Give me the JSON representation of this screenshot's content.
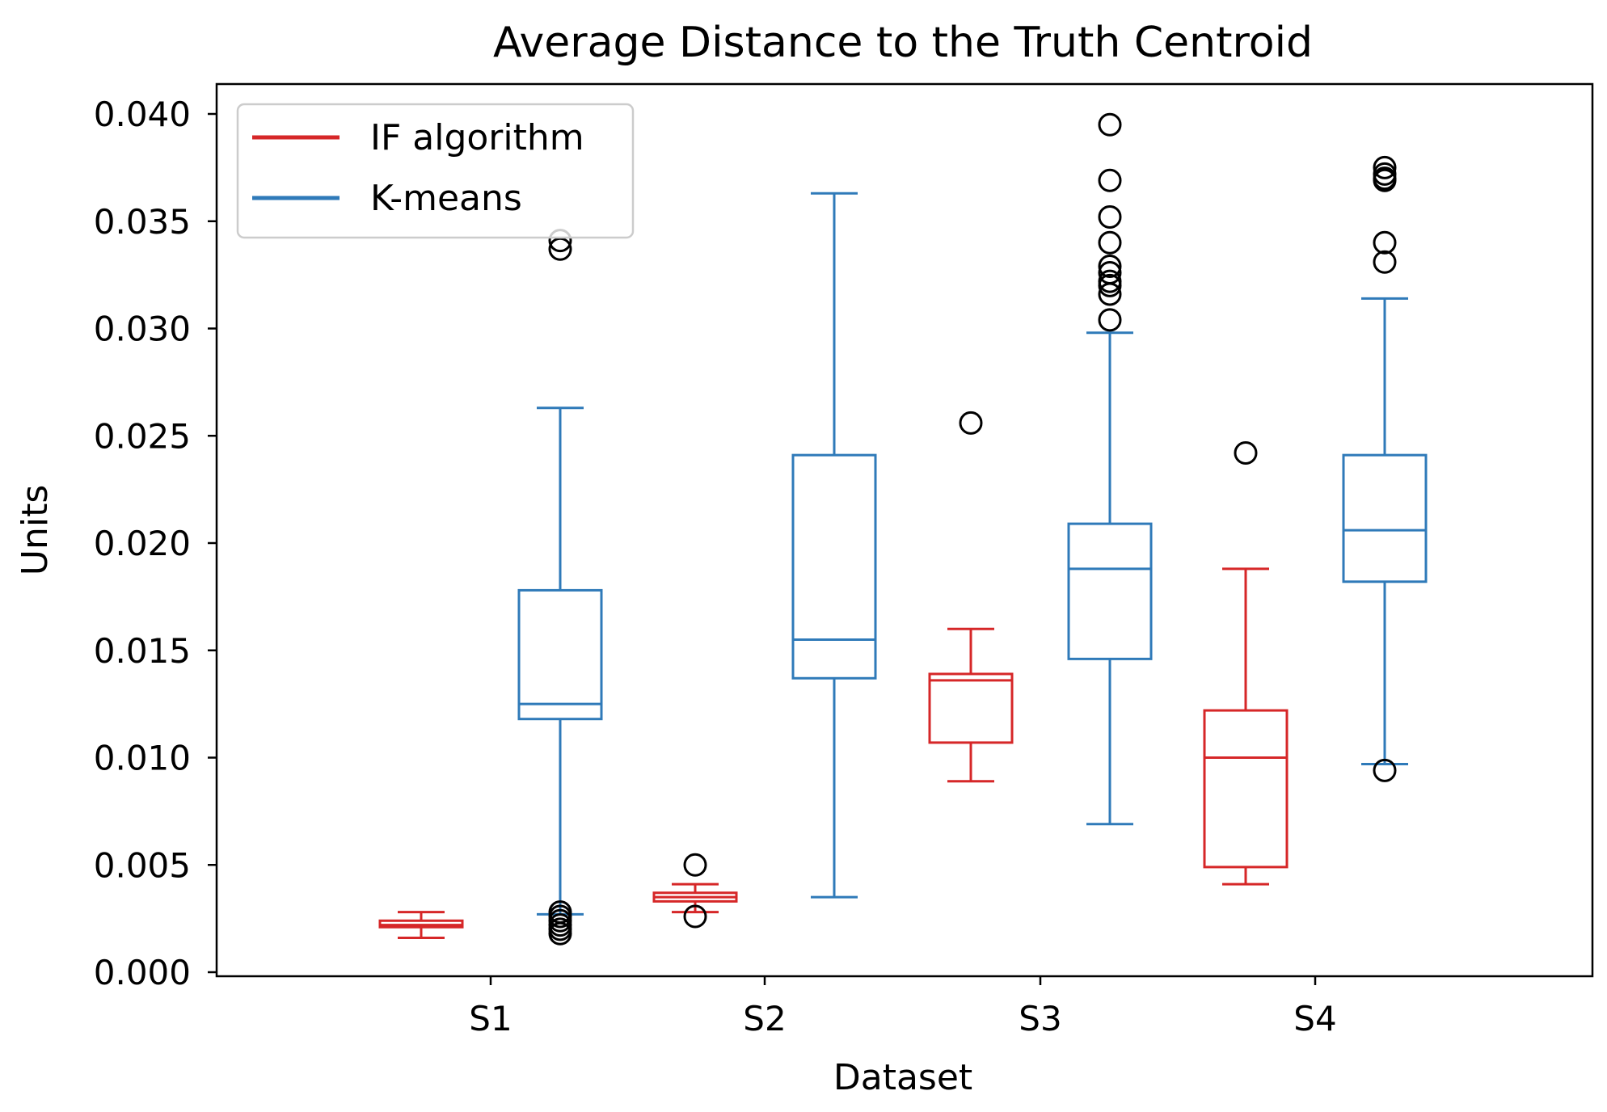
{
  "chart_data": {
    "type": "boxplot",
    "title": "Average Distance to the Truth Centroid",
    "xlabel": "Dataset",
    "ylabel": "Units",
    "ylim": [
      0.0,
      0.0415
    ],
    "yticks": [
      0.0,
      0.005,
      0.01,
      0.015,
      0.02,
      0.025,
      0.03,
      0.035,
      0.04
    ],
    "ytick_labels": [
      "0.000",
      "0.005",
      "0.010",
      "0.015",
      "0.020",
      "0.025",
      "0.030",
      "0.035",
      "0.040"
    ],
    "categories": [
      "S1",
      "S2",
      "S3",
      "S4"
    ],
    "grid": false,
    "legend_position": "top-left",
    "series": [
      {
        "name": "IF algorithm",
        "color": "#d62728",
        "boxes": [
          {
            "category": "S1",
            "whislo": 0.0016,
            "q1": 0.0021,
            "med": 0.0022,
            "q3": 0.0024,
            "whishi": 0.0028,
            "fliers": []
          },
          {
            "category": "S2",
            "whislo": 0.0028,
            "q1": 0.0033,
            "med": 0.0035,
            "q3": 0.0037,
            "whishi": 0.0041,
            "fliers": [
              0.005,
              0.0026
            ]
          },
          {
            "category": "S3",
            "whislo": 0.0089,
            "q1": 0.0107,
            "med": 0.0136,
            "q3": 0.0139,
            "whishi": 0.016,
            "fliers": [
              0.0256
            ]
          },
          {
            "category": "S4",
            "whislo": 0.0041,
            "q1": 0.0049,
            "med": 0.01,
            "q3": 0.0122,
            "whishi": 0.0188,
            "fliers": [
              0.0242
            ]
          }
        ]
      },
      {
        "name": "K-means",
        "color": "#2f7ab9",
        "boxes": [
          {
            "category": "S1",
            "whislo": 0.0027,
            "q1": 0.0118,
            "med": 0.0125,
            "q3": 0.0178,
            "whishi": 0.0263,
            "fliers": [
              0.0341,
              0.0337,
              0.0028,
              0.0026,
              0.0024,
              0.0022,
              0.002,
              0.0018
            ]
          },
          {
            "category": "S2",
            "whislo": 0.0035,
            "q1": 0.0137,
            "med": 0.0155,
            "q3": 0.0241,
            "whishi": 0.0363,
            "fliers": []
          },
          {
            "category": "S3",
            "whislo": 0.0069,
            "q1": 0.0146,
            "med": 0.0188,
            "q3": 0.0209,
            "whishi": 0.0298,
            "fliers": [
              0.0395,
              0.0369,
              0.0352,
              0.034,
              0.0329,
              0.0326,
              0.0322,
              0.032,
              0.0316,
              0.0304
            ]
          },
          {
            "category": "S4",
            "whislo": 0.0097,
            "q1": 0.0182,
            "med": 0.0206,
            "q3": 0.0241,
            "whishi": 0.0314,
            "fliers": [
              0.0375,
              0.0372,
              0.037,
              0.0369,
              0.034,
              0.0331,
              0.0094
            ]
          }
        ]
      }
    ]
  }
}
